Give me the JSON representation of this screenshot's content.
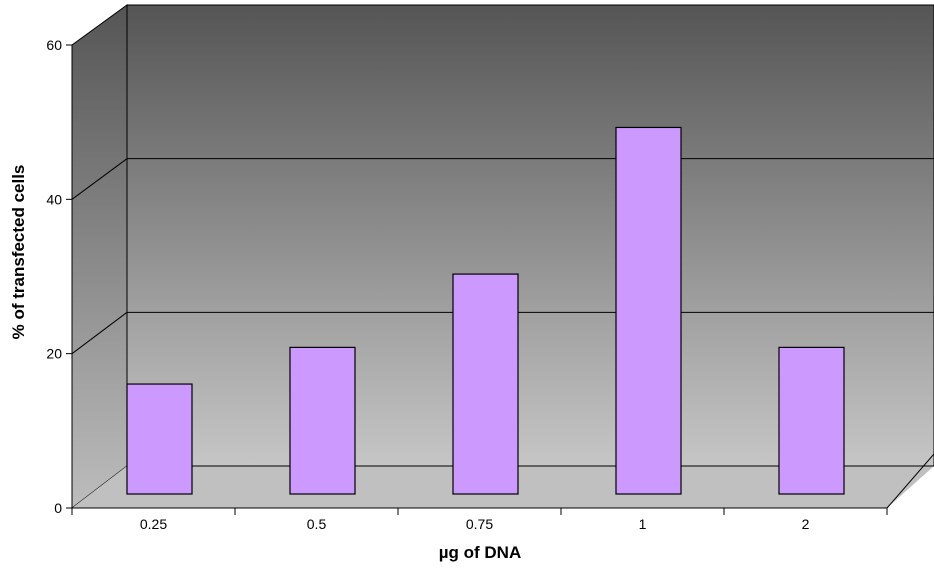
{
  "chart_data": {
    "type": "bar",
    "title": "",
    "xlabel": "µg of DNA",
    "ylabel": "% of transfected cells",
    "categories": [
      "0.25",
      "0.5",
      "0.75",
      "1",
      "2"
    ],
    "series": [
      {
        "values": [
          15,
          20,
          30,
          50,
          20
        ]
      }
    ],
    "ylim": [
      0,
      60
    ],
    "yticks": [
      "0",
      "20",
      "40",
      "60"
    ],
    "grid": true,
    "legend": "none",
    "colors": {
      "bar_fill": "#cc99ff",
      "bar_stroke": "#000000",
      "wall_top": "#555555",
      "wall_bottom": "#c6c6c6",
      "floor": "#c0c0c0"
    }
  }
}
